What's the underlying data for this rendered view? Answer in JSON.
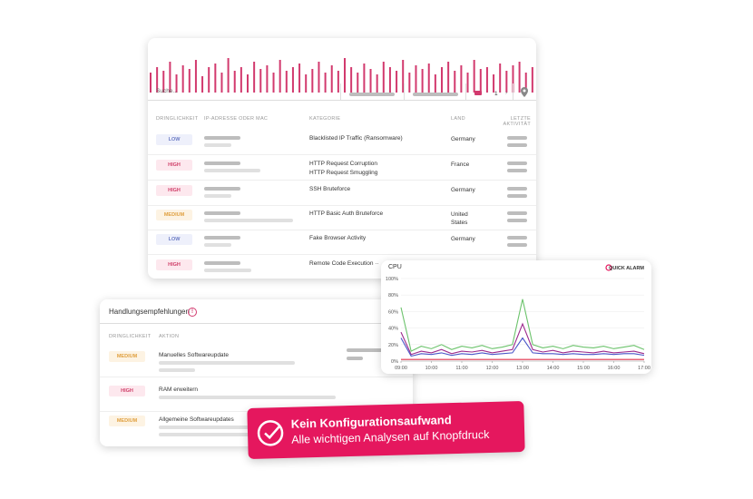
{
  "main_table": {
    "search_placeholder": "Suche...",
    "page": "1",
    "headers": [
      "DRINGLICHKEIT",
      "IP-ADRESSE ODER MAC",
      "KATEGORIE",
      "LAND",
      "LETZTE AKTIVITÄT"
    ],
    "rows": [
      {
        "severity": "LOW",
        "category": [
          "Blacklisted IP Traffic (Ransomware)"
        ],
        "country": "Germany"
      },
      {
        "severity": "HIGH",
        "category": [
          "HTTP Request Corruption",
          "HTTP Request Smuggling"
        ],
        "country": "France"
      },
      {
        "severity": "HIGH",
        "category": [
          "SSH Bruteforce"
        ],
        "country": "Germany"
      },
      {
        "severity": "MEDIUM",
        "category": [
          "HTTP Basic Auth Bruteforce"
        ],
        "country": "United States"
      },
      {
        "severity": "LOW",
        "category": [
          "Fake Browser Activity"
        ],
        "country": "Germany"
      },
      {
        "severity": "HIGH",
        "category": [
          "Remote Code Execution ··"
        ],
        "country": null
      }
    ]
  },
  "recommendations": {
    "title": "Handlungsempfehlungen",
    "headers": [
      "DRINGLICHKEIT",
      "AKTION"
    ],
    "rows": [
      {
        "severity": "MEDIUM",
        "action": "Manuelles Softwareupdate"
      },
      {
        "severity": "HIGH",
        "action": "RAM erweitern"
      },
      {
        "severity": "MEDIUM",
        "action": "Allgemeine Softwareupdates"
      }
    ]
  },
  "banner": {
    "title": "Kein Konfigurationsaufwand",
    "subtitle": "Alle wichtigen Analysen auf Knopfdruck"
  },
  "chart_data": [
    {
      "type": "bar",
      "color": "#d23a6e",
      "ylim": [
        0,
        100
      ],
      "values": [
        55,
        70,
        60,
        85,
        50,
        75,
        65,
        90,
        45,
        70,
        80,
        55,
        95,
        60,
        70,
        50,
        85,
        65,
        75,
        55,
        90,
        60,
        70,
        80,
        50,
        65,
        85,
        55,
        75,
        60,
        95,
        70,
        55,
        80,
        65,
        50,
        85,
        70,
        60,
        90,
        55,
        75,
        65,
        80,
        50,
        70,
        85,
        60,
        75,
        55,
        90,
        65,
        70,
        50,
        80,
        60,
        75,
        85,
        55,
        70
      ],
      "grid": false
    },
    {
      "type": "line",
      "title": "CPU",
      "annotation": "QUICK ALARM",
      "x": [
        540,
        560,
        580,
        600,
        620,
        640,
        660,
        680,
        700,
        720,
        740,
        760,
        780,
        800,
        820,
        840,
        860,
        880,
        900,
        920,
        940,
        960,
        980,
        1000,
        1020
      ],
      "xlim": [
        540,
        1020
      ],
      "xticks": [
        {
          "value": 540,
          "label": "09:00"
        },
        {
          "value": 600,
          "label": "10:00"
        },
        {
          "value": 660,
          "label": "11:00"
        },
        {
          "value": 720,
          "label": "12:00"
        },
        {
          "value": 780,
          "label": "13:00"
        },
        {
          "value": 840,
          "label": "14:00"
        },
        {
          "value": 900,
          "label": "15:00"
        },
        {
          "value": 960,
          "label": "16:00"
        },
        {
          "value": 1020,
          "label": "17:00"
        }
      ],
      "ylim": [
        0,
        100
      ],
      "yticks": [
        {
          "value": 0,
          "label": "0%"
        },
        {
          "value": 20,
          "label": "20%"
        },
        {
          "value": 40,
          "label": "40%"
        },
        {
          "value": 60,
          "label": "60%"
        },
        {
          "value": 80,
          "label": "80%"
        },
        {
          "value": 100,
          "label": "100%"
        }
      ],
      "grid": true,
      "series": [
        {
          "color": "#6cc36c",
          "values": [
            65,
            12,
            18,
            15,
            20,
            14,
            18,
            16,
            19,
            15,
            17,
            20,
            75,
            20,
            16,
            18,
            15,
            19,
            17,
            16,
            18,
            15,
            17,
            19,
            14
          ]
        },
        {
          "color": "#9c2a8c",
          "values": [
            35,
            8,
            12,
            10,
            14,
            9,
            12,
            11,
            13,
            10,
            12,
            14,
            45,
            14,
            11,
            13,
            10,
            12,
            11,
            10,
            12,
            10,
            11,
            12,
            9
          ]
        },
        {
          "color": "#4a56c8",
          "values": [
            28,
            6,
            9,
            8,
            10,
            7,
            9,
            8,
            10,
            8,
            9,
            10,
            28,
            10,
            9,
            9,
            8,
            9,
            8,
            8,
            9,
            8,
            9,
            9,
            7
          ]
        },
        {
          "color": "#e0334c",
          "values": [
            2,
            2,
            2,
            2,
            2,
            2,
            2,
            2,
            2,
            2,
            2,
            2,
            2,
            2,
            2,
            2,
            2,
            2,
            2,
            2,
            2,
            2,
            2,
            2,
            2
          ]
        }
      ]
    }
  ]
}
